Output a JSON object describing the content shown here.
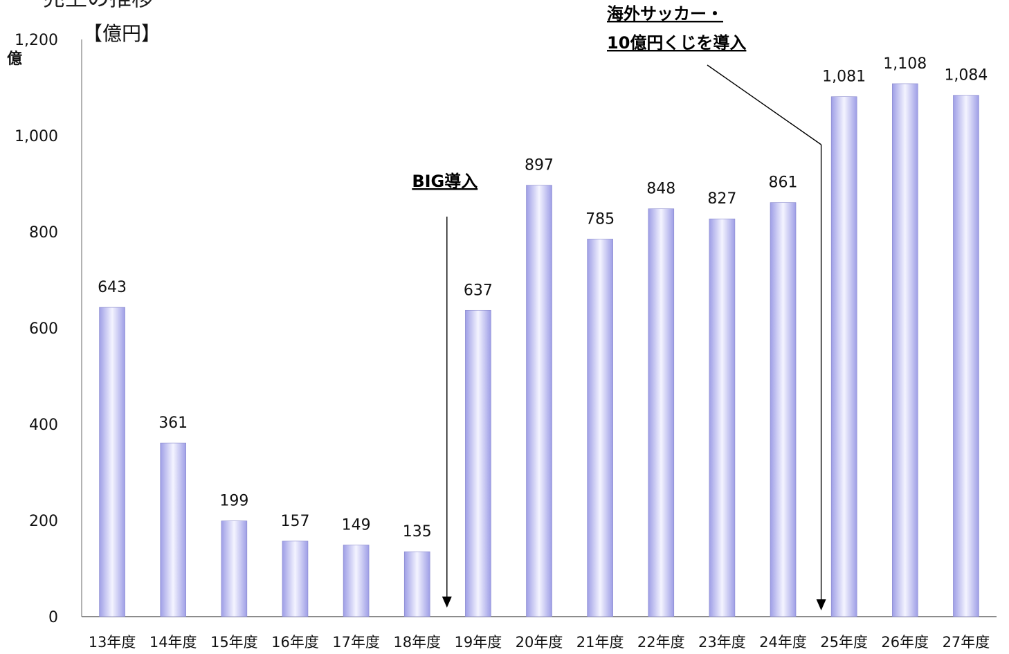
{
  "page": {
    "title_fragment": "売上の推移",
    "unit_label": "【億円】",
    "y_unit": "億"
  },
  "chart_data": {
    "type": "bar",
    "categories": [
      "13年度",
      "14年度",
      "15年度",
      "16年度",
      "17年度",
      "18年度",
      "19年度",
      "20年度",
      "21年度",
      "22年度",
      "23年度",
      "24年度",
      "25年度",
      "26年度",
      "27年度"
    ],
    "values": [
      643,
      361,
      199,
      157,
      149,
      135,
      637,
      897,
      785,
      848,
      827,
      861,
      1081,
      1108,
      1084
    ],
    "value_labels": [
      "643",
      "361",
      "199",
      "157",
      "149",
      "135",
      "637",
      "897",
      "785",
      "848",
      "827",
      "861",
      "1,081",
      "1,108",
      "1,084"
    ],
    "ylim": [
      0,
      1200
    ],
    "yticks": [
      0,
      200,
      400,
      600,
      800,
      1000,
      1200
    ],
    "ytick_labels": [
      "0",
      "200",
      "400",
      "600",
      "800",
      "1,000",
      "1,200"
    ],
    "bar_color": "#b9b9f2",
    "annotations": [
      {
        "text_lines": [
          "BIG導入"
        ],
        "between": [
          "18年度",
          "19年度"
        ]
      },
      {
        "text_lines": [
          "海外サッカー・",
          "10億円くじを導入"
        ],
        "between": [
          "24年度",
          "25年度"
        ]
      }
    ]
  }
}
